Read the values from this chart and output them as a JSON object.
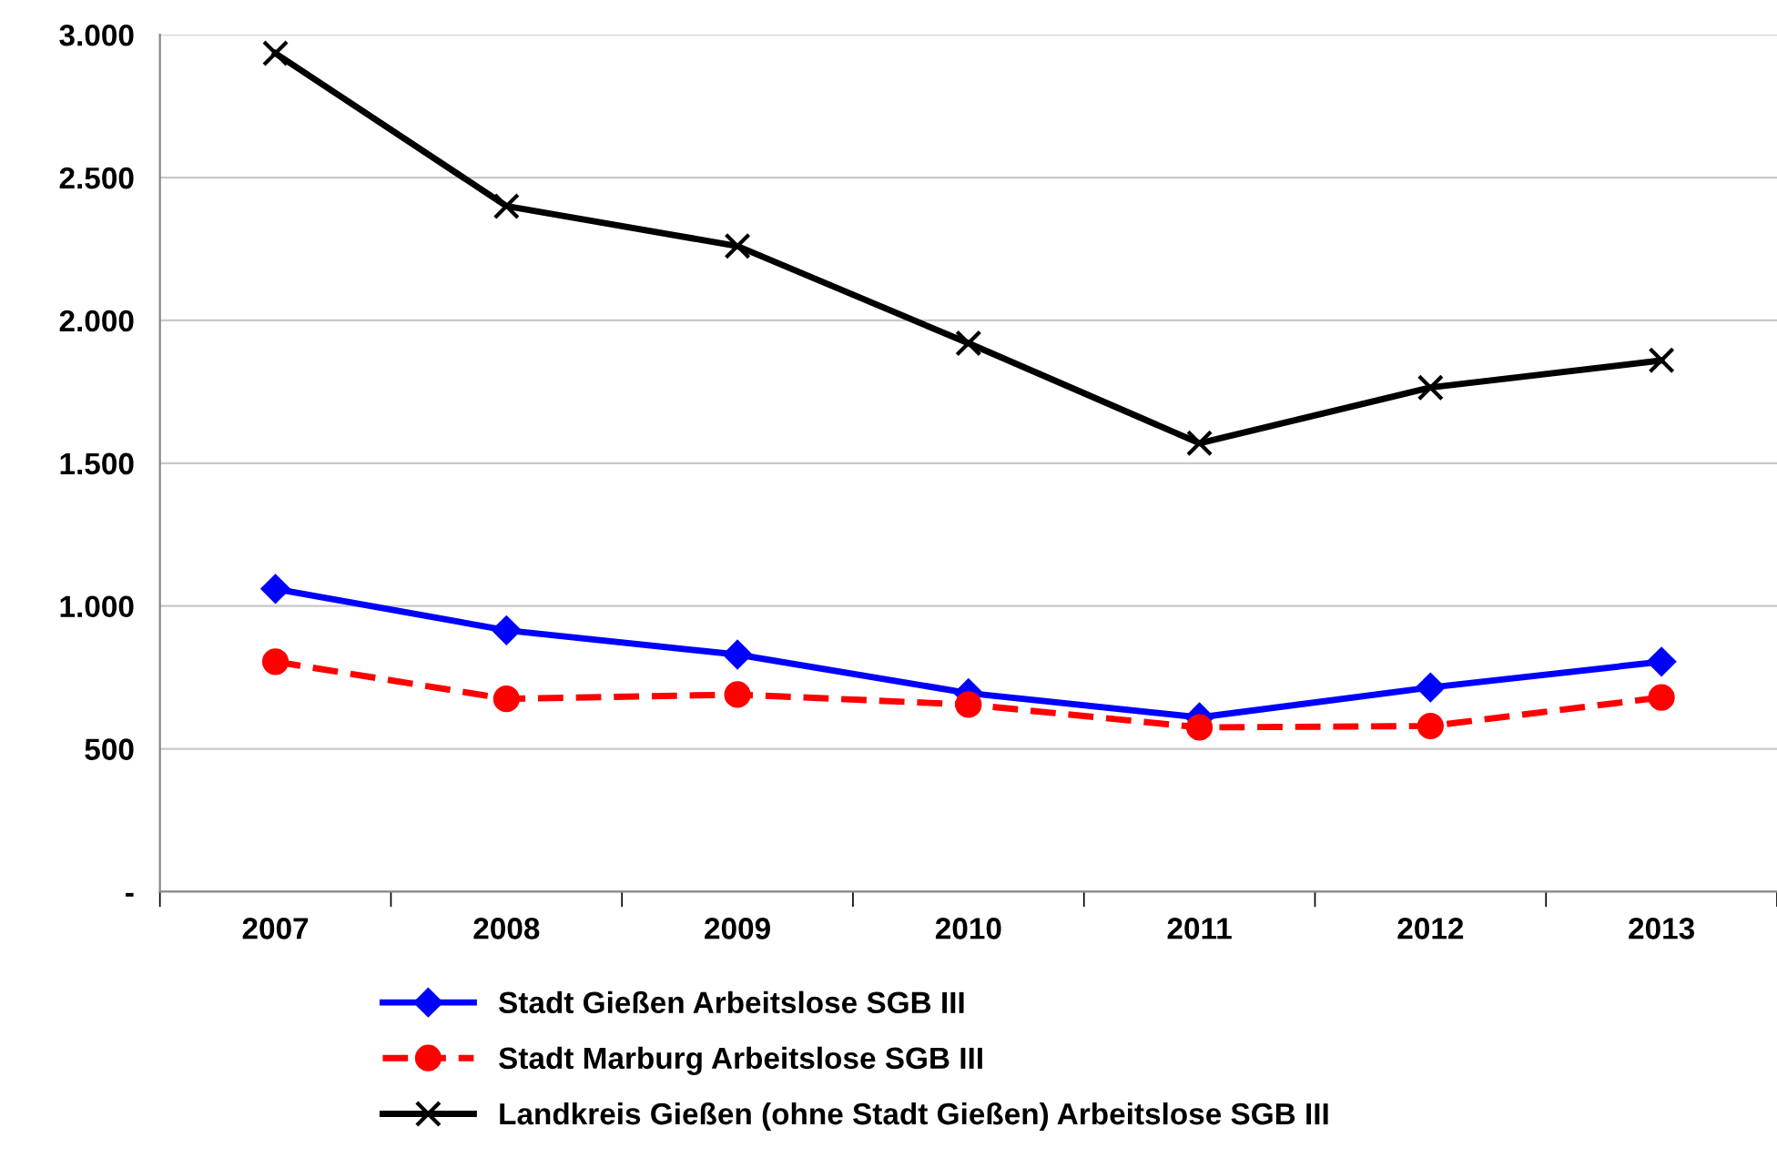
{
  "chart_data": {
    "type": "line",
    "categories": [
      "2007",
      "2008",
      "2009",
      "2010",
      "2011",
      "2012",
      "2013"
    ],
    "series": [
      {
        "name": "Stadt Gießen Arbeitslose SGB III",
        "color": "#0000ff",
        "marker": "diamond",
        "line_style": "solid",
        "values": [
          1060,
          915,
          830,
          695,
          610,
          715,
          805
        ]
      },
      {
        "name": "Stadt Marburg Arbeitslose SGB III",
        "color": "#ff0000",
        "marker": "circle",
        "line_style": "dashed",
        "values": [
          805,
          675,
          690,
          655,
          575,
          580,
          680
        ]
      },
      {
        "name": "Landkreis Gießen (ohne Stadt Gießen) Arbeitslose SGB III",
        "color": "#000000",
        "marker": "cross",
        "line_style": "solid",
        "values": [
          2935,
          2400,
          2260,
          1920,
          1570,
          1765,
          1860
        ]
      }
    ],
    "ylim": [
      0,
      3000
    ],
    "yticks": [
      {
        "value": 0,
        "label": "-"
      },
      {
        "value": 500,
        "label": "500"
      },
      {
        "value": 1000,
        "label": "1.000"
      },
      {
        "value": 1500,
        "label": "1.500"
      },
      {
        "value": 2000,
        "label": "2.000"
      },
      {
        "value": 2500,
        "label": "2.500"
      },
      {
        "value": 3000,
        "label": "3.000"
      }
    ],
    "grid": "y",
    "legend": "bottom left"
  }
}
